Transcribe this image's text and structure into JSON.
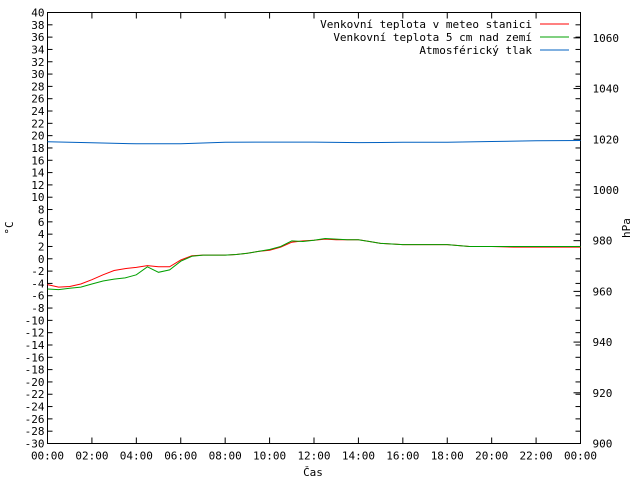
{
  "chart_data": {
    "type": "line",
    "xlabel": "Čas",
    "ylabel": "°C",
    "y2label": "hPa",
    "x_ticks": [
      "00:00",
      "02:00",
      "04:00",
      "06:00",
      "08:00",
      "10:00",
      "12:00",
      "14:00",
      "16:00",
      "18:00",
      "20:00",
      "22:00",
      "00:00"
    ],
    "xlim": [
      0,
      24
    ],
    "ylim": [
      -30,
      40
    ],
    "y_tick_step": 2,
    "y2lim": [
      900,
      1070
    ],
    "y2_ticks": [
      900,
      920,
      940,
      960,
      980,
      1000,
      1020,
      1040,
      1060
    ],
    "grid": false,
    "legend_position": "top-right",
    "series": [
      {
        "name": "Venkovní teplota v meteo stanici",
        "color": "#ff0000",
        "axis": "y",
        "points": [
          [
            0,
            -4.2
          ],
          [
            0.5,
            -4.6
          ],
          [
            1,
            -4.5
          ],
          [
            1.5,
            -4.1
          ],
          [
            2,
            -3.4
          ],
          [
            2.5,
            -2.6
          ],
          [
            3,
            -1.9
          ],
          [
            3.5,
            -1.6
          ],
          [
            4,
            -1.4
          ],
          [
            4.5,
            -1.1
          ],
          [
            5,
            -1.3
          ],
          [
            5.5,
            -1.3
          ],
          [
            6,
            -0.2
          ],
          [
            6.5,
            0.5
          ],
          [
            7,
            0.6
          ],
          [
            7.5,
            0.6
          ],
          [
            8,
            0.6
          ],
          [
            8.5,
            0.7
          ],
          [
            9,
            0.9
          ],
          [
            9.5,
            1.2
          ],
          [
            10,
            1.4
          ],
          [
            10.5,
            1.9
          ],
          [
            11,
            2.7
          ],
          [
            11.5,
            2.9
          ],
          [
            12,
            3.0
          ],
          [
            12.5,
            3.2
          ],
          [
            13,
            3.1
          ],
          [
            13.5,
            3.1
          ],
          [
            14,
            3.1
          ],
          [
            14.5,
            2.8
          ],
          [
            15,
            2.5
          ],
          [
            16,
            2.3
          ],
          [
            17,
            2.3
          ],
          [
            18,
            2.3
          ],
          [
            19,
            2.0
          ],
          [
            20,
            2.0
          ],
          [
            21,
            1.9
          ],
          [
            22,
            1.9
          ],
          [
            23,
            1.9
          ],
          [
            24,
            1.9
          ]
        ]
      },
      {
        "name": "Venkovní teplota 5 cm nad zemí",
        "color": "#00a000",
        "axis": "y",
        "points": [
          [
            0,
            -4.9
          ],
          [
            0.5,
            -5.0
          ],
          [
            1,
            -4.8
          ],
          [
            1.5,
            -4.6
          ],
          [
            2,
            -4.1
          ],
          [
            2.5,
            -3.6
          ],
          [
            3,
            -3.3
          ],
          [
            3.5,
            -3.1
          ],
          [
            4,
            -2.6
          ],
          [
            4.5,
            -1.3
          ],
          [
            5,
            -2.2
          ],
          [
            5.5,
            -1.8
          ],
          [
            6,
            -0.4
          ],
          [
            6.5,
            0.4
          ],
          [
            7,
            0.6
          ],
          [
            7.5,
            0.6
          ],
          [
            8,
            0.6
          ],
          [
            8.5,
            0.7
          ],
          [
            9,
            0.9
          ],
          [
            9.5,
            1.2
          ],
          [
            10,
            1.5
          ],
          [
            10.5,
            2.0
          ],
          [
            11,
            2.9
          ],
          [
            11.5,
            2.8
          ],
          [
            12,
            3.0
          ],
          [
            12.5,
            3.3
          ],
          [
            13,
            3.2
          ],
          [
            13.5,
            3.1
          ],
          [
            14,
            3.1
          ],
          [
            14.5,
            2.8
          ],
          [
            15,
            2.5
          ],
          [
            16,
            2.3
          ],
          [
            17,
            2.3
          ],
          [
            18,
            2.3
          ],
          [
            19,
            2.0
          ],
          [
            20,
            2.0
          ],
          [
            21,
            2.0
          ],
          [
            22,
            2.0
          ],
          [
            23,
            2.0
          ],
          [
            24,
            2.0
          ]
        ]
      },
      {
        "name": "Atmosférický tlak",
        "color": "#0060c0",
        "axis": "y2",
        "points": [
          [
            0,
            1019
          ],
          [
            2,
            1018.6
          ],
          [
            4,
            1018.2
          ],
          [
            6,
            1018.2
          ],
          [
            8,
            1018.8
          ],
          [
            10,
            1018.9
          ],
          [
            12,
            1018.9
          ],
          [
            14,
            1018.7
          ],
          [
            16,
            1018.8
          ],
          [
            18,
            1018.8
          ],
          [
            20,
            1019.1
          ],
          [
            22,
            1019.4
          ],
          [
            24,
            1019.5
          ]
        ]
      }
    ]
  }
}
